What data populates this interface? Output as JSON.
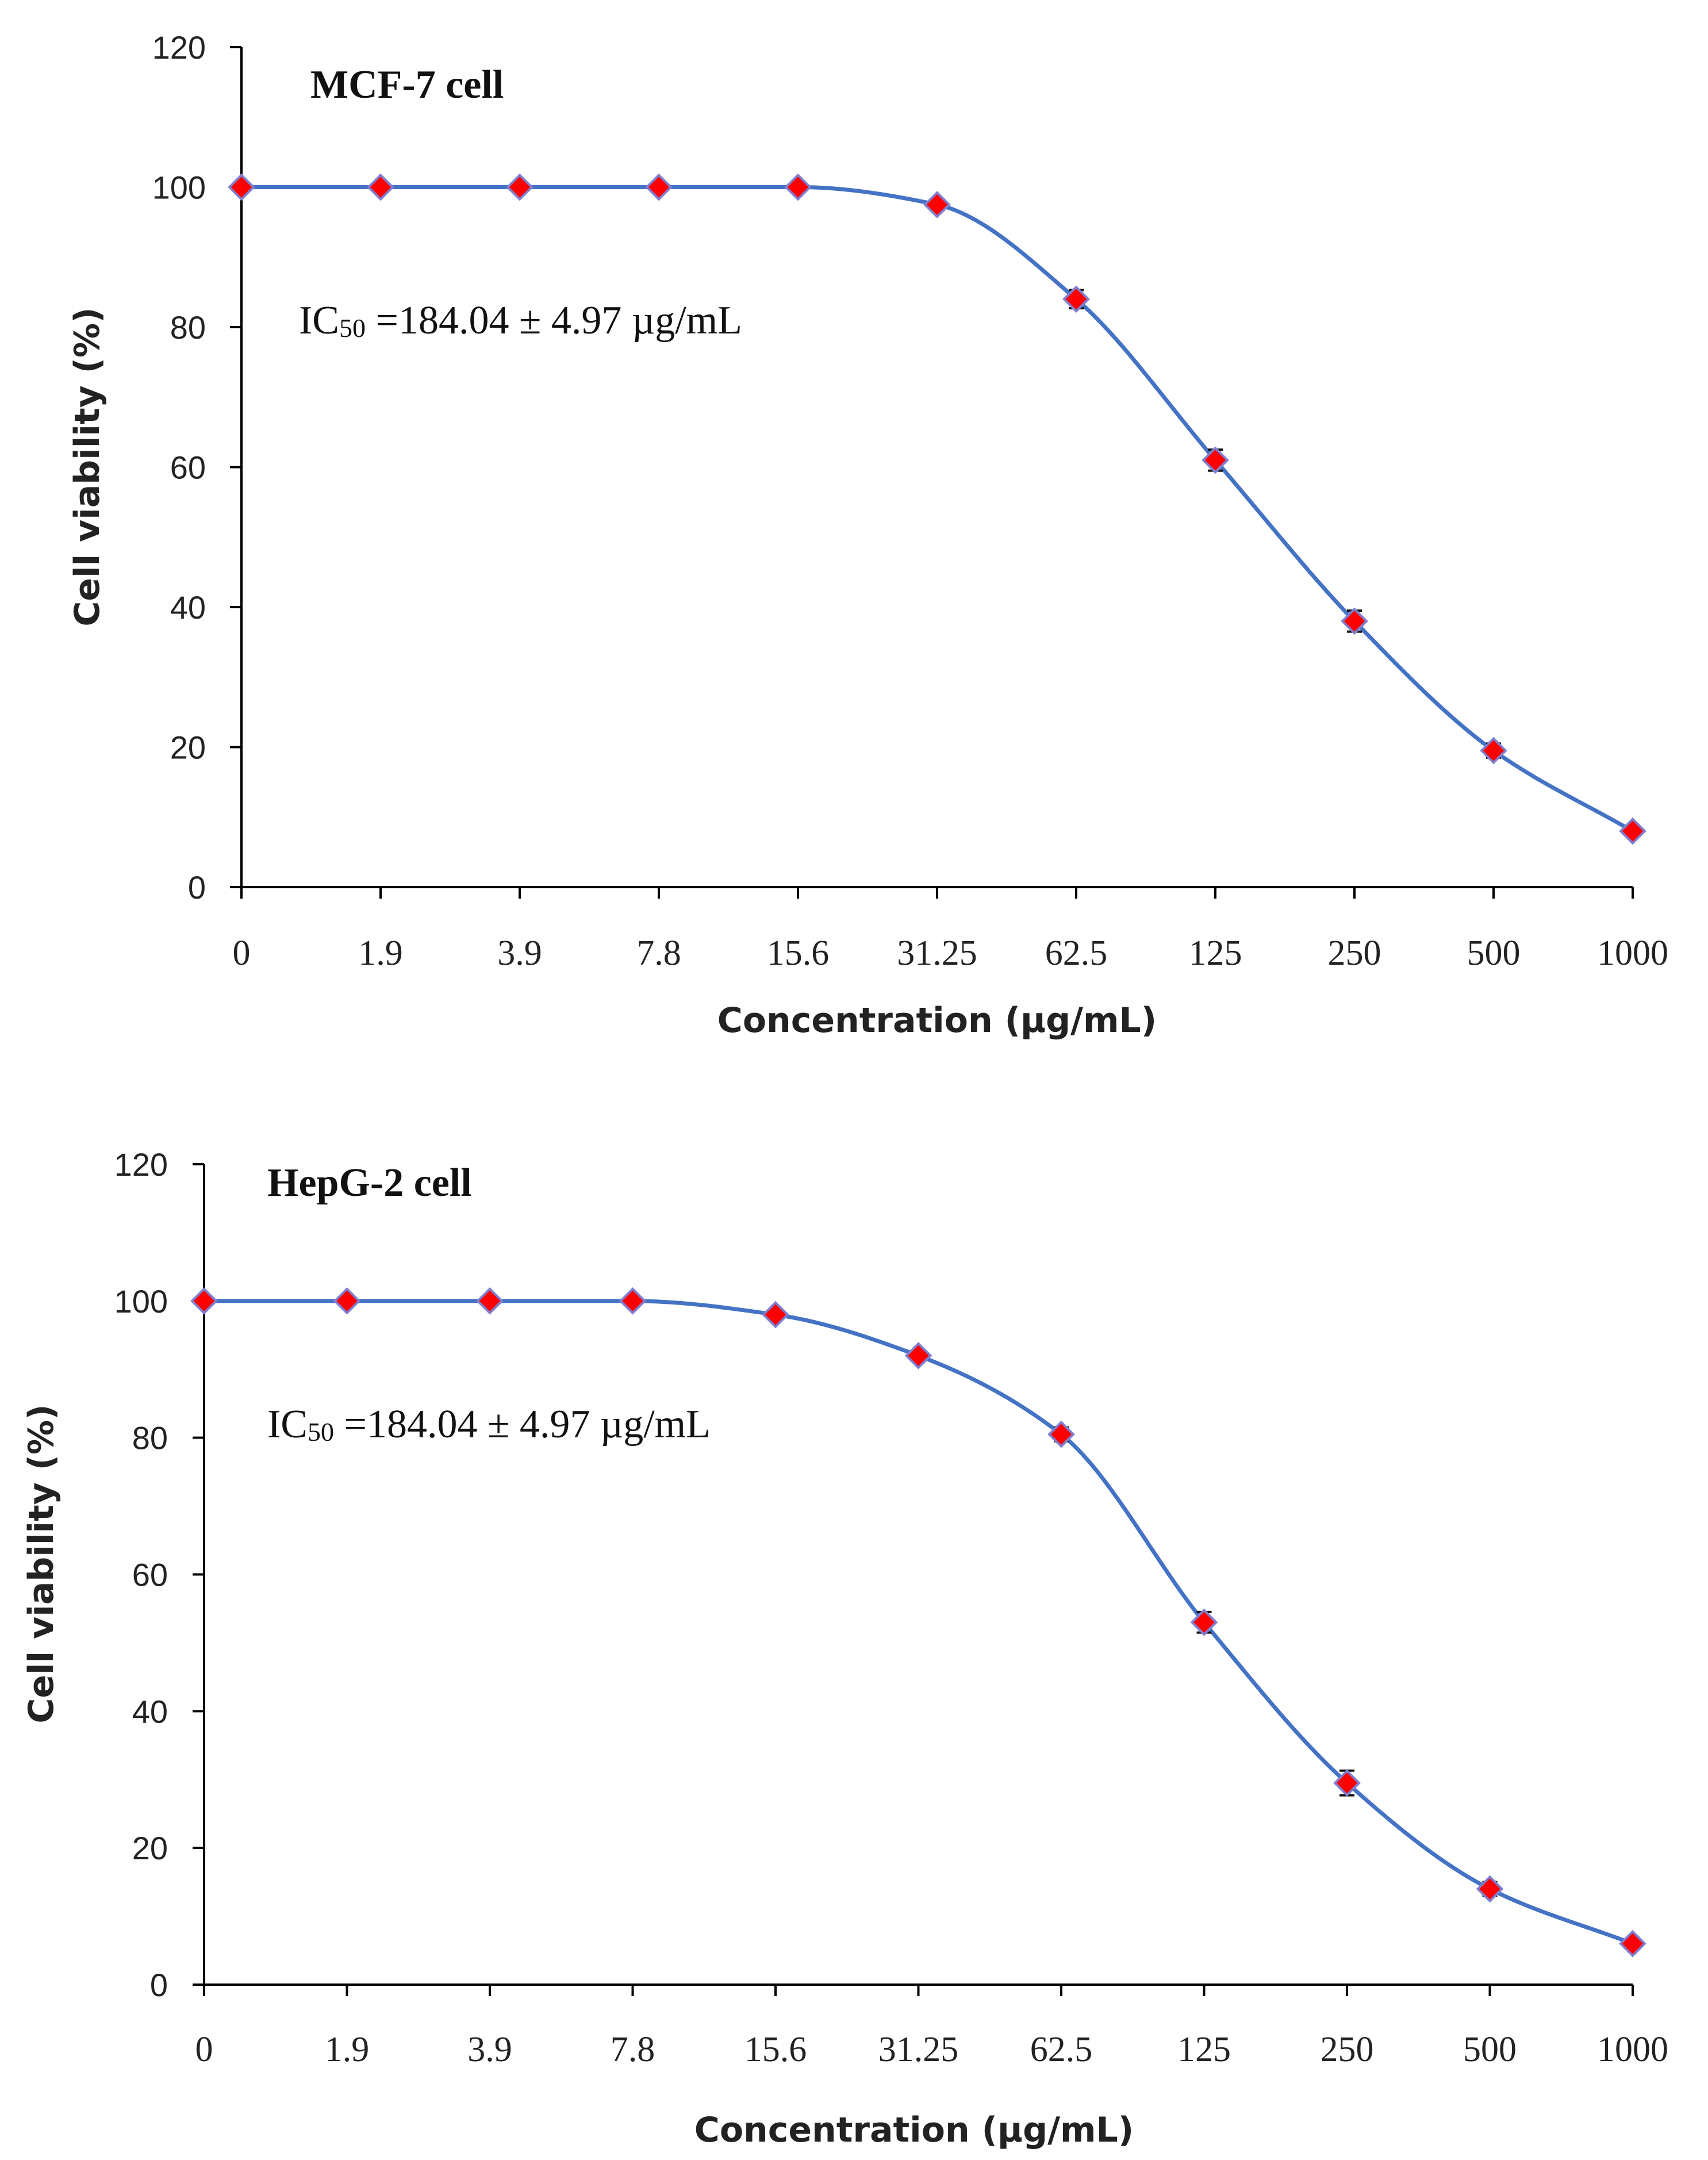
{
  "colors": {
    "line": "#4472C4",
    "marker": "#FF0000",
    "marker_edge": "#7F7FD0",
    "axis": "#000000",
    "error": "#111111"
  },
  "chart_data": [
    {
      "type": "line",
      "title": "MCF-7 cell",
      "annotation": {
        "prefix": "IC",
        "subscript": "50",
        "text": " =184.04 ± 4.97 µg/mL"
      },
      "xlabel": "Concentration (µg/mL)",
      "ylabel": "Cell viability (%)",
      "ylim": [
        0,
        120
      ],
      "yticks": [
        "0",
        "20",
        "40",
        "60",
        "80",
        "100",
        "120"
      ],
      "categories": [
        "0",
        "1.9",
        "3.9",
        "7.8",
        "15.6",
        "31.25",
        "62.5",
        "125",
        "250",
        "500",
        "1000"
      ],
      "values": [
        100,
        100,
        100,
        100,
        100,
        97.5,
        84,
        61,
        38,
        19.5,
        8
      ],
      "errors": [
        0,
        0,
        0,
        0,
        0,
        0.8,
        1.3,
        1.5,
        1.5,
        1.0,
        0.6
      ]
    },
    {
      "type": "line",
      "title": "HepG-2 cell",
      "annotation": {
        "prefix": "IC",
        "subscript": "50",
        "text": " =184.04 ± 4.97 µg/mL"
      },
      "xlabel": "Concentration (µg/mL)",
      "ylabel": "Cell viability (%)",
      "ylim": [
        0,
        120
      ],
      "yticks": [
        "0",
        "20",
        "40",
        "60",
        "80",
        "100",
        "120"
      ],
      "categories": [
        "0",
        "1.9",
        "3.9",
        "7.8",
        "15.6",
        "31.25",
        "62.5",
        "125",
        "250",
        "500",
        "1000"
      ],
      "values": [
        100,
        100,
        100,
        100,
        98,
        92,
        80.5,
        53,
        29.5,
        14,
        6
      ],
      "errors": [
        0,
        0,
        0,
        0,
        0.6,
        0.8,
        1.0,
        1.5,
        1.8,
        1.0,
        0.6
      ]
    }
  ]
}
